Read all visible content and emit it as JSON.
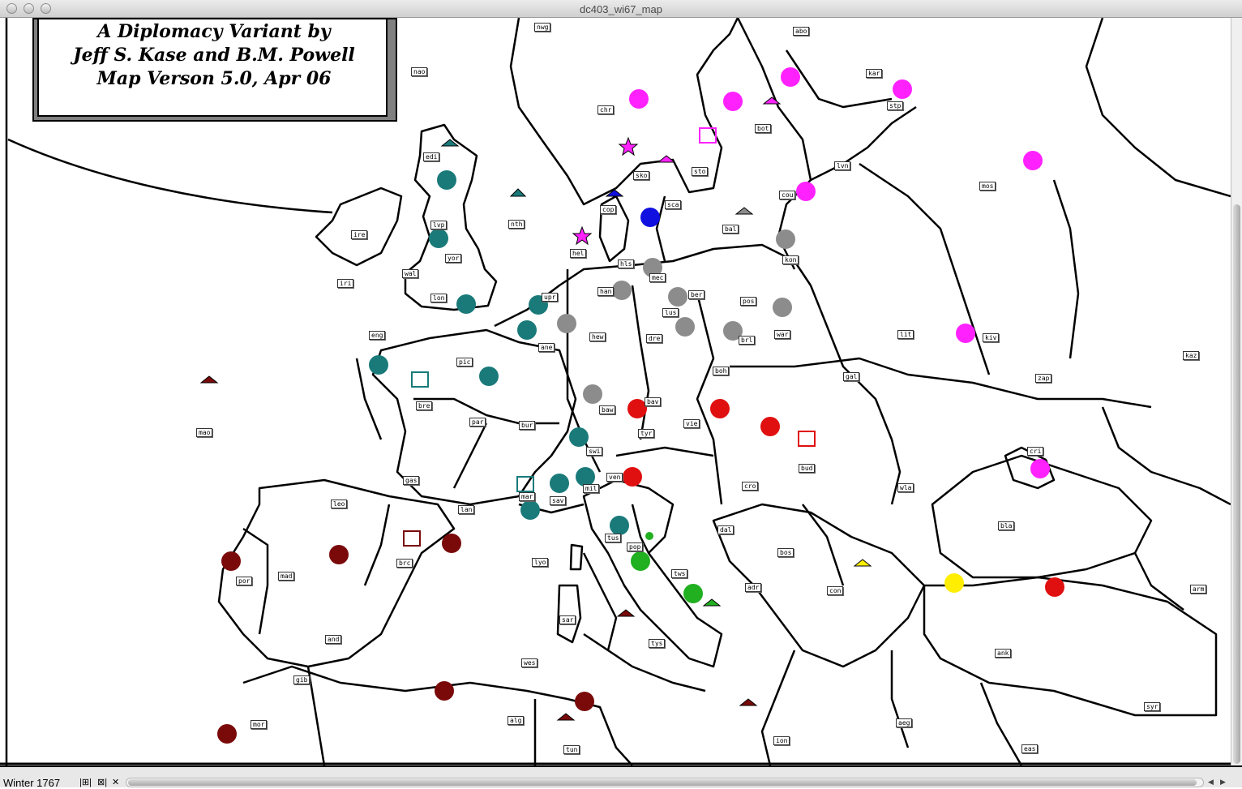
{
  "window": {
    "title": "dc403_wi67_map"
  },
  "credit": {
    "line1": "A Diplomacy Variant by",
    "line2": "Jeff S. Kase and B.M. Powell",
    "line3": "Map Verson 5.0, Apr 06"
  },
  "status": {
    "season": "Winter 1767",
    "icon1": "|⊞|",
    "icon2": "⊠|",
    "close": "✕"
  },
  "colors": {
    "teal": "#1a7a7a",
    "gray": "#8c8c8c",
    "red": "#e01010",
    "darkred": "#7a0a0a",
    "magenta": "#ff22ff",
    "blue": "#1010e0",
    "green": "#20b020",
    "yellow": "#ffee00"
  },
  "provinces": [
    {
      "id": "nwg",
      "t": "nwg"
    },
    {
      "id": "nao",
      "t": "nao"
    },
    {
      "id": "abo",
      "t": "abo"
    },
    {
      "id": "kar",
      "t": "kar"
    },
    {
      "id": "stp",
      "t": "stp"
    },
    {
      "id": "chr",
      "t": "chr"
    },
    {
      "id": "bot",
      "t": "bot"
    },
    {
      "id": "edi",
      "t": "edi"
    },
    {
      "id": "sko",
      "t": "sko"
    },
    {
      "id": "sto",
      "t": "sto"
    },
    {
      "id": "lvn",
      "t": "lvn"
    },
    {
      "id": "mos",
      "t": "mos"
    },
    {
      "id": "cou",
      "t": "cou"
    },
    {
      "id": "cop",
      "t": "cop"
    },
    {
      "id": "sca",
      "t": "sca"
    },
    {
      "id": "nth",
      "t": "nth"
    },
    {
      "id": "ire",
      "t": "ire"
    },
    {
      "id": "lvp",
      "t": "lvp"
    },
    {
      "id": "bal",
      "t": "bal"
    },
    {
      "id": "yor",
      "t": "yor"
    },
    {
      "id": "hel",
      "t": "hel"
    },
    {
      "id": "hls",
      "t": "hls"
    },
    {
      "id": "kon",
      "t": "kon"
    },
    {
      "id": "wal",
      "t": "wal"
    },
    {
      "id": "iri",
      "t": "iri"
    },
    {
      "id": "mec",
      "t": "mec"
    },
    {
      "id": "han",
      "t": "han"
    },
    {
      "id": "ber",
      "t": "ber"
    },
    {
      "id": "upr",
      "t": "upr"
    },
    {
      "id": "lon",
      "t": "lon"
    },
    {
      "id": "pos",
      "t": "pos"
    },
    {
      "id": "lus",
      "t": "lus"
    },
    {
      "id": "hew",
      "t": "hew"
    },
    {
      "id": "dre",
      "t": "dre"
    },
    {
      "id": "eng",
      "t": "eng"
    },
    {
      "id": "brl",
      "t": "brl"
    },
    {
      "id": "war",
      "t": "war"
    },
    {
      "id": "lit",
      "t": "lit"
    },
    {
      "id": "kiv",
      "t": "kiv"
    },
    {
      "id": "ane",
      "t": "ane"
    },
    {
      "id": "kaz",
      "t": "kaz"
    },
    {
      "id": "pic",
      "t": "pic"
    },
    {
      "id": "boh",
      "t": "boh"
    },
    {
      "id": "gal",
      "t": "gal"
    },
    {
      "id": "zap",
      "t": "zap"
    },
    {
      "id": "bre",
      "t": "bre"
    },
    {
      "id": "baw",
      "t": "baw"
    },
    {
      "id": "bav",
      "t": "bav"
    },
    {
      "id": "par",
      "t": "par"
    },
    {
      "id": "bur",
      "t": "bur"
    },
    {
      "id": "vie",
      "t": "vie"
    },
    {
      "id": "mao",
      "t": "mao"
    },
    {
      "id": "tyr",
      "t": "tyr"
    },
    {
      "id": "swi",
      "t": "swi"
    },
    {
      "id": "cri",
      "t": "cri"
    },
    {
      "id": "bud",
      "t": "bud"
    },
    {
      "id": "gas",
      "t": "gas"
    },
    {
      "id": "ven",
      "t": "ven"
    },
    {
      "id": "mil",
      "t": "mil"
    },
    {
      "id": "cro",
      "t": "cro"
    },
    {
      "id": "wla",
      "t": "wla"
    },
    {
      "id": "mar",
      "t": "mar"
    },
    {
      "id": "leo",
      "t": "leo"
    },
    {
      "id": "lan",
      "t": "lan"
    },
    {
      "id": "sav",
      "t": "sav"
    },
    {
      "id": "bla",
      "t": "bla"
    },
    {
      "id": "tus",
      "t": "tus"
    },
    {
      "id": "pop",
      "t": "pop"
    },
    {
      "id": "dal",
      "t": "dal"
    },
    {
      "id": "brc",
      "t": "brc"
    },
    {
      "id": "mad",
      "t": "mad"
    },
    {
      "id": "lyo",
      "t": "lyo"
    },
    {
      "id": "bos",
      "t": "bos"
    },
    {
      "id": "por",
      "t": "por"
    },
    {
      "id": "tws",
      "t": "tws"
    },
    {
      "id": "adr",
      "t": "adr"
    },
    {
      "id": "con",
      "t": "con"
    },
    {
      "id": "arm",
      "t": "arm"
    },
    {
      "id": "sar",
      "t": "sar"
    },
    {
      "id": "and",
      "t": "and"
    },
    {
      "id": "tys",
      "t": "tys"
    },
    {
      "id": "ank",
      "t": "ank"
    },
    {
      "id": "wes",
      "t": "wes"
    },
    {
      "id": "gib",
      "t": "gib"
    },
    {
      "id": "syr",
      "t": "syr"
    },
    {
      "id": "alg",
      "t": "alg"
    },
    {
      "id": "mor",
      "t": "mor"
    },
    {
      "id": "aeg",
      "t": "aeg"
    },
    {
      "id": "ion",
      "t": "ion"
    },
    {
      "id": "tun",
      "t": "tun"
    },
    {
      "id": "eas",
      "t": "eas"
    }
  ]
}
